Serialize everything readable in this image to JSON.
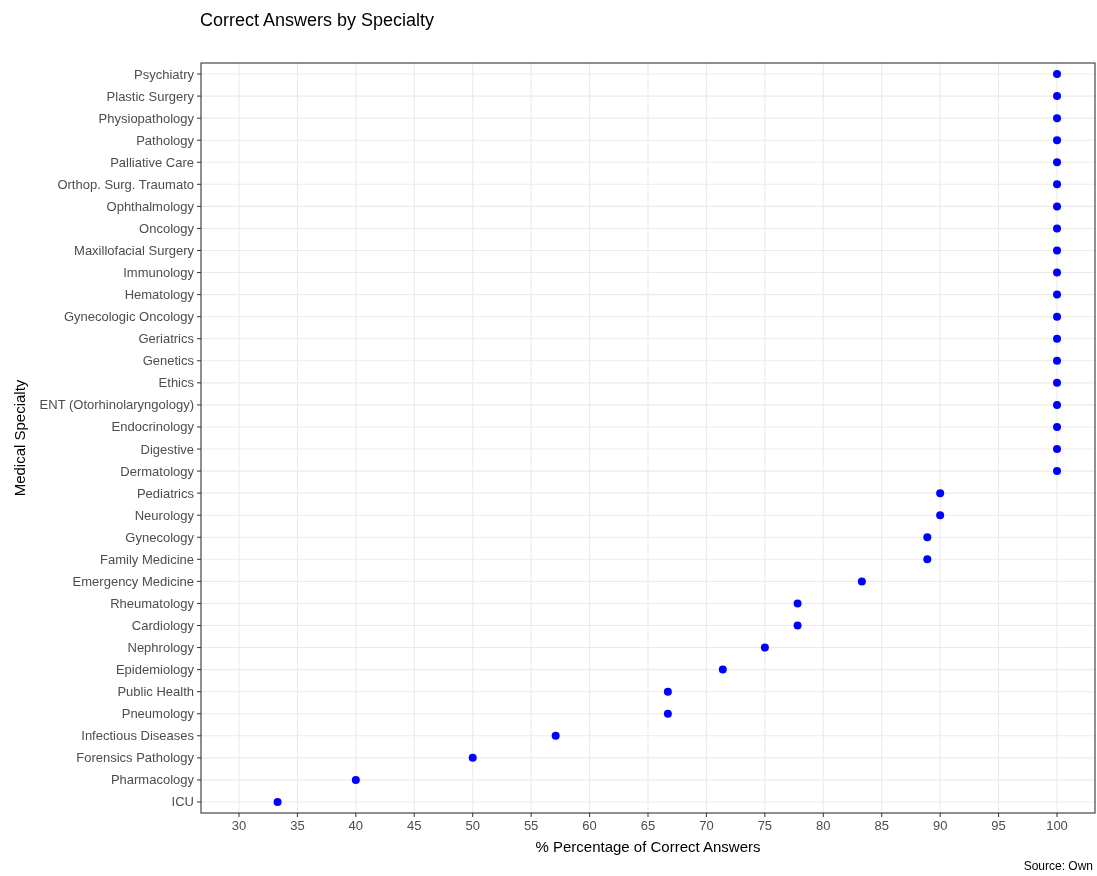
{
  "chart_data": {
    "type": "scatter",
    "title": "Correct Answers by Specialty",
    "xlabel": "% Percentage of Correct Answers",
    "ylabel": "Medical Specialty",
    "orientation": "horizontal",
    "categories": [
      "Psychiatry",
      "Plastic Surgery",
      "Physiopathology",
      "Pathology",
      "Palliative Care",
      "Orthop. Surg. Traumato",
      "Ophthalmology",
      "Oncology",
      "Maxillofacial Surgery",
      "Immunology",
      "Hematology",
      "Gynecologic Oncology",
      "Geriatrics",
      "Genetics",
      "Ethics",
      "ENT (Otorhinolaryngology)",
      "Endocrinology",
      "Digestive",
      "Dermatology",
      "Pediatrics",
      "Neurology",
      "Gynecology",
      "Family Medicine",
      "Emergency Medicine",
      "Rheumatology",
      "Cardiology",
      "Nephrology",
      "Epidemiology",
      "Public Health",
      "Pneumology",
      "Infectious Diseases",
      "Forensics Pathology",
      "Pharmacology",
      "ICU"
    ],
    "series": [
      {
        "color": "#0000ff",
        "values": [
          100,
          100,
          100,
          100,
          100,
          100,
          100,
          100,
          100,
          100,
          100,
          100,
          100,
          100,
          100,
          100,
          100,
          100,
          100,
          90,
          90,
          88.9,
          88.9,
          83.3,
          77.8,
          77.8,
          75,
          71.4,
          66.7,
          66.7,
          57.1,
          50,
          40,
          33.3
        ]
      }
    ],
    "xlim": [
      26.75,
      103.25
    ],
    "xticks": [
      30,
      35,
      40,
      45,
      50,
      55,
      60,
      65,
      70,
      75,
      80,
      85,
      90,
      95,
      100
    ],
    "grid": true,
    "marker": "circle",
    "annotations": [
      "Source: Own"
    ]
  }
}
